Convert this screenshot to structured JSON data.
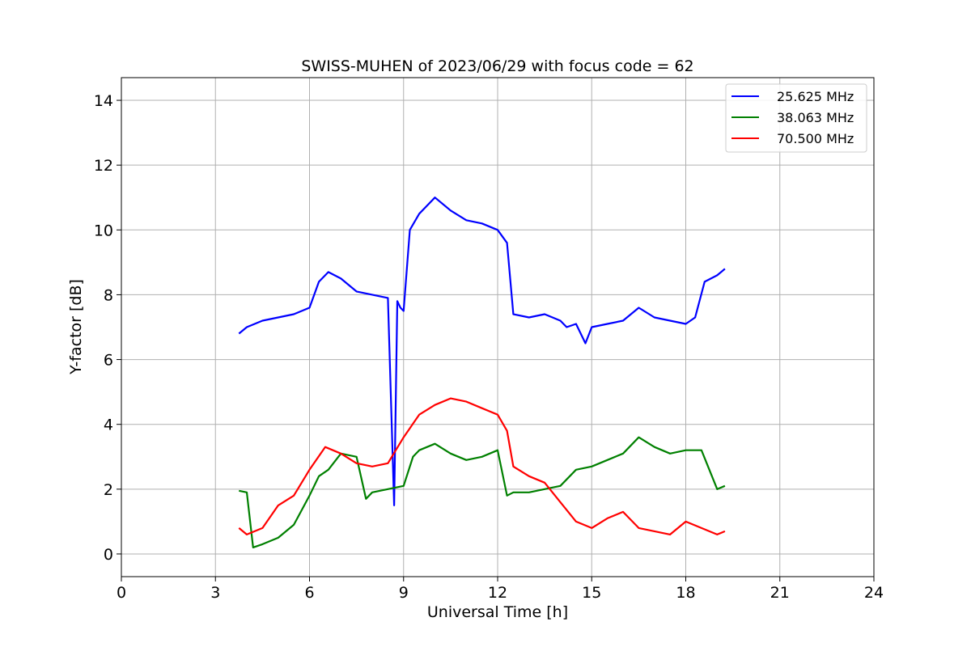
{
  "chart_data": {
    "type": "line",
    "title": "SWISS-MUHEN of 2023/06/29 with focus code = 62",
    "xlabel": "Universal Time [h]",
    "ylabel": "Y-factor [dB]",
    "xlim": [
      0,
      24
    ],
    "ylim": [
      -0.7,
      14.7
    ],
    "xticks": [
      0,
      3,
      6,
      9,
      12,
      15,
      18,
      21,
      24
    ],
    "yticks": [
      0,
      2,
      4,
      6,
      8,
      10,
      12,
      14
    ],
    "grid": true,
    "legend_position": "top-right",
    "series": [
      {
        "name": "25.625 MHz",
        "color": "#0000ff",
        "x": [
          3.75,
          4.0,
          4.5,
          5.0,
          5.5,
          6.0,
          6.3,
          6.6,
          7.0,
          7.5,
          8.0,
          8.5,
          8.7,
          8.8,
          8.9,
          9.0,
          9.2,
          9.5,
          10.0,
          10.5,
          11.0,
          11.5,
          12.0,
          12.3,
          12.5,
          13.0,
          13.5,
          14.0,
          14.2,
          14.5,
          14.8,
          15.0,
          15.5,
          16.0,
          16.5,
          17.0,
          17.5,
          18.0,
          18.3,
          18.6,
          19.0,
          19.25
        ],
        "y": [
          6.8,
          7.0,
          7.2,
          7.3,
          7.4,
          7.6,
          8.4,
          8.7,
          8.5,
          8.1,
          8.0,
          7.9,
          1.5,
          7.8,
          7.6,
          7.5,
          10.0,
          10.5,
          11.0,
          10.6,
          10.3,
          10.2,
          10.0,
          9.6,
          7.4,
          7.3,
          7.4,
          7.2,
          7.0,
          7.1,
          6.5,
          7.0,
          7.1,
          7.2,
          7.6,
          7.3,
          7.2,
          7.1,
          7.3,
          8.4,
          8.6,
          8.8
        ]
      },
      {
        "name": "38.063 MHz",
        "color": "#008000",
        "x": [
          3.75,
          4.0,
          4.2,
          4.5,
          5.0,
          5.5,
          6.0,
          6.3,
          6.6,
          7.0,
          7.5,
          7.8,
          8.0,
          8.5,
          9.0,
          9.3,
          9.5,
          10.0,
          10.5,
          11.0,
          11.5,
          12.0,
          12.3,
          12.5,
          13.0,
          13.5,
          14.0,
          14.5,
          15.0,
          15.5,
          16.0,
          16.5,
          17.0,
          17.5,
          18.0,
          18.5,
          19.0,
          19.25
        ],
        "y": [
          1.95,
          1.9,
          0.2,
          0.3,
          0.5,
          0.9,
          1.8,
          2.4,
          2.6,
          3.1,
          3.0,
          1.7,
          1.9,
          2.0,
          2.1,
          3.0,
          3.2,
          3.4,
          3.1,
          2.9,
          3.0,
          3.2,
          1.8,
          1.9,
          1.9,
          2.0,
          2.1,
          2.6,
          2.7,
          2.9,
          3.1,
          3.6,
          3.3,
          3.1,
          3.2,
          3.2,
          2.0,
          2.1
        ]
      },
      {
        "name": "70.500 MHz",
        "color": "#ff0000",
        "x": [
          3.75,
          4.0,
          4.5,
          5.0,
          5.5,
          6.0,
          6.5,
          7.0,
          7.5,
          8.0,
          8.5,
          9.0,
          9.5,
          10.0,
          10.5,
          11.0,
          11.5,
          12.0,
          12.3,
          12.5,
          13.0,
          13.5,
          14.0,
          14.5,
          15.0,
          15.5,
          16.0,
          16.5,
          17.0,
          17.5,
          18.0,
          18.5,
          19.0,
          19.25
        ],
        "y": [
          0.8,
          0.6,
          0.8,
          1.5,
          1.8,
          2.6,
          3.3,
          3.1,
          2.8,
          2.7,
          2.8,
          3.6,
          4.3,
          4.6,
          4.8,
          4.7,
          4.5,
          4.3,
          3.8,
          2.7,
          2.4,
          2.2,
          1.6,
          1.0,
          0.8,
          1.1,
          1.3,
          0.8,
          0.7,
          0.6,
          1.0,
          0.8,
          0.6,
          0.7
        ]
      }
    ]
  }
}
